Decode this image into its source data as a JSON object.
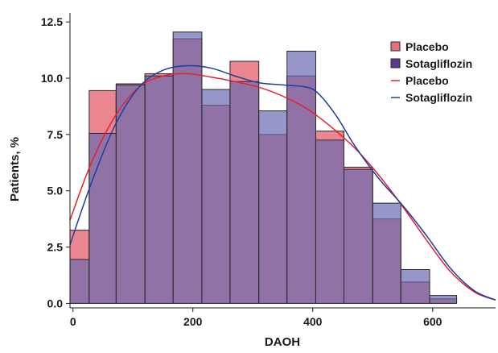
{
  "chart_data": {
    "type": "bar",
    "xlabel": "DAOH",
    "ylabel": "Patients, %",
    "xlim": [
      -5,
      705
    ],
    "ylim": [
      -0.2,
      12.9
    ],
    "xticks": [
      0,
      200,
      400,
      600
    ],
    "xtick_labels": [
      "0",
      "200",
      "400",
      "600"
    ],
    "yticks": [
      0,
      2.5,
      5.0,
      7.5,
      10.0,
      12.5
    ],
    "ytick_labels": [
      "0.0",
      "2.5",
      "5.0",
      "7.5",
      "10.0",
      "12.5"
    ],
    "grid": false,
    "legend_position": "top-right",
    "bin_edges": [
      -5,
      27,
      72,
      120,
      167,
      215,
      262,
      310,
      357,
      405,
      452,
      500,
      547,
      595,
      640,
      685
    ],
    "series": [
      {
        "name": "Placebo",
        "kind": "histogram",
        "color": "#e8707d",
        "values": [
          3.25,
          9.45,
          9.75,
          10.2,
          11.75,
          8.8,
          10.75,
          7.5,
          10.1,
          7.65,
          6.05,
          3.75,
          0.95,
          0.2
        ]
      },
      {
        "name": "Sotagliflozin",
        "kind": "histogram",
        "color": "#6a6ab0",
        "values": [
          1.95,
          7.55,
          9.7,
          10.1,
          12.05,
          9.5,
          9.85,
          8.55,
          11.2,
          7.25,
          5.95,
          4.45,
          1.5,
          0.35
        ]
      },
      {
        "name": "Placebo",
        "kind": "density",
        "color": "#e8202c",
        "x": [
          -5,
          30,
          70,
          110,
          150,
          190,
          230,
          270,
          310,
          350,
          390,
          430,
          470,
          510,
          550,
          590,
          630,
          670,
          705
        ],
        "values": [
          3.7,
          6.2,
          8.3,
          9.6,
          10.1,
          10.2,
          10.05,
          9.85,
          9.6,
          9.2,
          8.65,
          7.85,
          6.9,
          5.7,
          4.3,
          2.8,
          1.4,
          0.5,
          0.15
        ]
      },
      {
        "name": "Sotagliflozin",
        "kind": "density",
        "color": "#1a3fa0",
        "x": [
          -5,
          30,
          70,
          110,
          150,
          190,
          230,
          270,
          310,
          350,
          390,
          410,
          440,
          470,
          510,
          550,
          590,
          630,
          670,
          705
        ],
        "values": [
          2.6,
          5.3,
          7.9,
          9.6,
          10.35,
          10.55,
          10.45,
          10.1,
          9.8,
          9.7,
          9.6,
          9.3,
          8.3,
          7.0,
          5.55,
          4.35,
          3.0,
          1.55,
          0.55,
          0.15
        ]
      }
    ],
    "legend": [
      {
        "label": "Placebo",
        "type": "patch",
        "color": "#e8707d"
      },
      {
        "label": "Sotagliflozin",
        "type": "patch",
        "color": "#5c3a8e"
      },
      {
        "label": "Placebo",
        "type": "line",
        "color": "#e8202c"
      },
      {
        "label": "Sotagliflozin",
        "type": "line",
        "color": "#1a3fa0"
      }
    ]
  }
}
